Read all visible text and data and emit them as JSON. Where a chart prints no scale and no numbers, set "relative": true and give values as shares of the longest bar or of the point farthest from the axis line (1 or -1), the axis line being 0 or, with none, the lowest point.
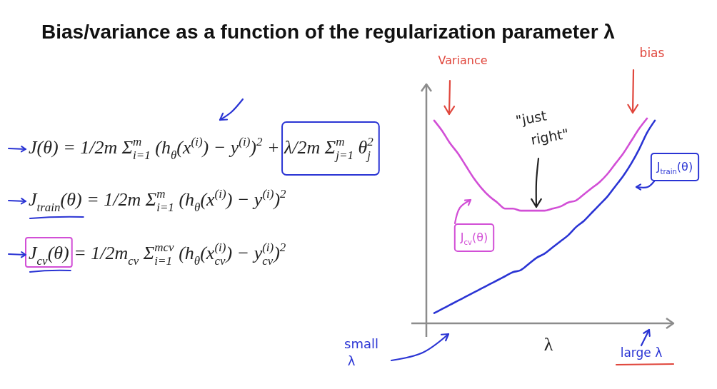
{
  "chart_data": {
    "type": "line",
    "title": "Bias/variance as a function of the regularization parameter λ",
    "xlabel": "λ",
    "relative": true,
    "categories": [
      null,
      null,
      null,
      null,
      null,
      null,
      null,
      null,
      null,
      null,
      null,
      null,
      null,
      null,
      null,
      null,
      null,
      null,
      null,
      null,
      null,
      null,
      null,
      null,
      null,
      null,
      null,
      null,
      null
    ],
    "series": [
      {
        "name": "J$_{cv}$(θ)",
        "color": "#d24fd6",
        "values": [
          0.99,
          0.94,
          0.88,
          0.83,
          0.77,
          0.71,
          0.66,
          0.62,
          0.59,
          0.56,
          0.56,
          0.55,
          0.55,
          0.55,
          0.55,
          0.56,
          0.57,
          0.59,
          0.6,
          0.63,
          0.66,
          0.69,
          0.73,
          0.78,
          0.83,
          0.89,
          0.95,
          1,
          null
        ]
      },
      {
        "name": "J$_{train}$(θ)",
        "color": "#2a34d4",
        "values": [
          0.05,
          0.07,
          0.09,
          0.11,
          0.13,
          0.15,
          0.17,
          0.19,
          0.21,
          0.23,
          0.25,
          0.26,
          0.29,
          0.32,
          0.34,
          0.37,
          0.4,
          0.43,
          0.47,
          0.5,
          0.54,
          0.58,
          0.62,
          0.67,
          0.72,
          0.78,
          0.85,
          0.93,
          0.99
        ]
      }
    ],
    "annotations": [
      "Variance",
      "bias",
      "\"just right\"",
      "small λ",
      "large λ",
      "J(θ) = 1/2m Σ$^{m}$$_{i=1}$ (h$_{θ}$(x$^{(i)}$) − y$^{(i)}$)$^{2}$ + λ/2m Σ$^{m}$$_{j=1}$ θ$^{2}$$_{j}$",
      "J$_{train}$(θ) = 1/2m Σ$^{m}$$_{i=1}$ (h$_{θ}$(x$^{(i)}$) − y$^{(i)}$)$^{2}$",
      "J$_{cv}$(θ) = 1/2m$_{cv}$ Σ$^{mcv}$$_{i=1}$ (h$_{θ}$(x$^{(i)}$$_{cv}$) − y$^{(i)}$$_{cv}$)$^{2}$"
    ]
  }
}
